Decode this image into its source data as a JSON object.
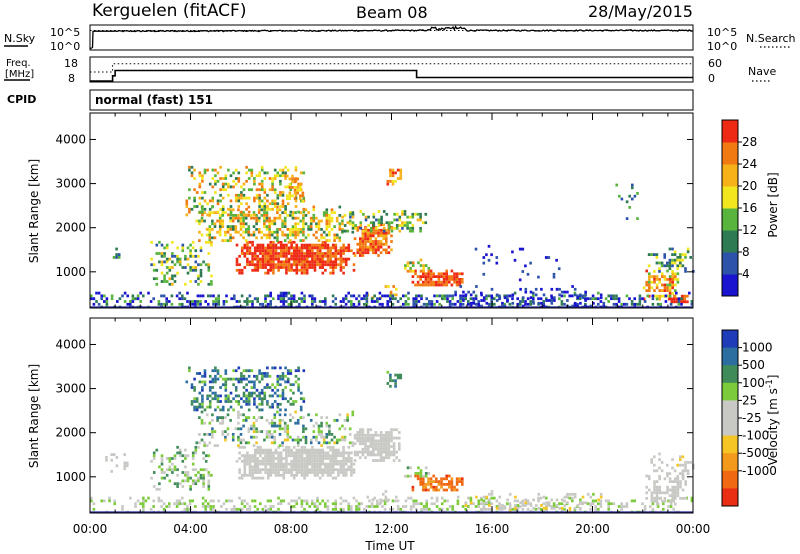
{
  "header": {
    "station": "Kerguelen (fitACF)",
    "beam": "Beam 08",
    "date": "28/May/2015"
  },
  "nsky_panel": {
    "left_label": "N.Sky",
    "right_label": "N.Search",
    "left_ticks": [
      "10^5",
      "10^0"
    ],
    "right_ticks": [
      "10^5",
      "10^0"
    ]
  },
  "freq_panel": {
    "left_label_line1": "Freq.",
    "left_label_line2": "[MHz]",
    "right_label": "Nave",
    "left_ticks": [
      "18",
      "8"
    ],
    "right_ticks": [
      "60",
      "0"
    ]
  },
  "cpid": {
    "label": "CPID",
    "mode_text": "normal (fast) 151"
  },
  "colors": {
    "power_scale": [
      "#1a14d0",
      "#2c53a8",
      "#2e7a52",
      "#58b43c",
      "#f2e61e",
      "#f7b21a",
      "#f27a12",
      "#ee2a14"
    ],
    "velocity_scale": [
      "#1f3cb8",
      "#2d6ea0",
      "#3f8c5a",
      "#7ccb3a",
      "#c8c8c4",
      "#c8c8c4",
      "#f5c525",
      "#f39a1c",
      "#f06812",
      "#ea2e14"
    ]
  },
  "chart_data": [
    {
      "type": "line",
      "panel": "noise",
      "series": [
        {
          "name": "N.Sky",
          "style": "solid",
          "x": [
            0,
            0.1,
            0.12,
            13,
            14.5,
            15,
            24
          ],
          "y": [
            0.05,
            0.1,
            0.75,
            0.78,
            0.82,
            0.78,
            0.78
          ]
        },
        {
          "name": "N.Search",
          "style": "dotted",
          "x": [
            0,
            24
          ],
          "y": [
            0.78,
            0.78
          ]
        }
      ]
    },
    {
      "type": "line",
      "panel": "frequency",
      "freq_ylim": [
        8,
        18
      ],
      "nave_ylim": [
        0,
        60
      ],
      "series": [
        {
          "name": "Freq.",
          "style": "solid",
          "x": [
            0,
            0.9,
            0.9,
            1.0,
            1.0,
            13,
            13,
            24
          ],
          "y": [
            8.4,
            8.4,
            10.5,
            10.5,
            12.6,
            12.6,
            9.8,
            9.8
          ]
        },
        {
          "name": "Nave",
          "style": "dotted",
          "x": [
            0,
            0.9,
            0.9,
            24
          ],
          "y": [
            24,
            24,
            44,
            44
          ]
        }
      ]
    },
    {
      "type": "heatmap",
      "panel": "power",
      "xlabel": "Time UT",
      "ylabel": "Slant Range [km]",
      "xlim": [
        0,
        24
      ],
      "ylim": [
        180,
        4600
      ],
      "xticks": [
        "00:00",
        "04:00",
        "08:00",
        "12:00",
        "16:00",
        "20:00",
        "00:00"
      ],
      "yticks": [
        1000,
        2000,
        3000,
        4000
      ],
      "colorbar": {
        "label": "Power [dB]",
        "ticks": [
          4,
          8,
          12,
          16,
          20,
          24,
          28
        ],
        "range": [
          0,
          32
        ]
      },
      "regions": [
        {
          "t0": 5.8,
          "t1": 10.5,
          "r0": 1000,
          "r1": 1700,
          "v": 29,
          "spread": 3,
          "density": 0.9
        },
        {
          "t0": 10.5,
          "t1": 12.0,
          "r0": 1400,
          "r1": 2100,
          "v": 27,
          "spread": 4,
          "density": 0.85
        },
        {
          "t0": 12.8,
          "t1": 14.8,
          "r0": 680,
          "r1": 1050,
          "v": 28,
          "spread": 4,
          "density": 0.85
        },
        {
          "t0": 4.2,
          "t1": 10.5,
          "r0": 1700,
          "r1": 2500,
          "v": 18,
          "spread": 9,
          "density": 0.55
        },
        {
          "t0": 3.8,
          "t1": 8.5,
          "r0": 2300,
          "r1": 3400,
          "v": 18,
          "spread": 9,
          "density": 0.35
        },
        {
          "t0": 7.8,
          "t1": 8.5,
          "r0": 2600,
          "r1": 3200,
          "v": 22,
          "spread": 6,
          "density": 0.5
        },
        {
          "t0": 11.8,
          "t1": 12.4,
          "r0": 3000,
          "r1": 3400,
          "v": 24,
          "spread": 5,
          "density": 0.5
        },
        {
          "t0": 2.4,
          "t1": 4.8,
          "r0": 700,
          "r1": 1700,
          "v": 14,
          "spread": 8,
          "density": 0.4
        },
        {
          "t0": 0.8,
          "t1": 1.2,
          "r0": 1250,
          "r1": 1550,
          "v": 12,
          "spread": 6,
          "density": 0.5
        },
        {
          "t0": 10.0,
          "t1": 13.5,
          "r0": 1900,
          "r1": 2400,
          "v": 14,
          "spread": 8,
          "density": 0.45
        },
        {
          "t0": 12.5,
          "t1": 13.5,
          "r0": 1000,
          "r1": 1300,
          "v": 18,
          "spread": 8,
          "density": 0.5
        },
        {
          "t0": 11.0,
          "t1": 12.2,
          "r0": 400,
          "r1": 700,
          "v": 22,
          "spread": 6,
          "density": 0.3
        },
        {
          "t0": 22.0,
          "t1": 23.4,
          "r0": 400,
          "r1": 1050,
          "v": 22,
          "spread": 8,
          "density": 0.6
        },
        {
          "t0": 23.0,
          "t1": 23.8,
          "r0": 330,
          "r1": 480,
          "v": 30,
          "spread": 3,
          "density": 0.8
        },
        {
          "t0": 22.2,
          "t1": 24.0,
          "r0": 1000,
          "r1": 1550,
          "v": 12,
          "spread": 8,
          "density": 0.45
        },
        {
          "t0": 20.6,
          "t1": 21.8,
          "r0": 2200,
          "r1": 3000,
          "v": 10,
          "spread": 6,
          "density": 0.12
        },
        {
          "t0": 0.0,
          "t1": 24.0,
          "r0": 200,
          "r1": 550,
          "v": 6,
          "spread": 9,
          "density": 0.45
        },
        {
          "t0": 14.5,
          "t1": 20.5,
          "r0": 200,
          "r1": 700,
          "v": 4,
          "spread": 3,
          "density": 0.25
        },
        {
          "t0": 15.0,
          "t1": 19.0,
          "r0": 800,
          "r1": 1800,
          "v": 3,
          "spread": 3,
          "density": 0.03
        }
      ]
    },
    {
      "type": "heatmap",
      "panel": "velocity",
      "xlabel": "Time UT",
      "ylabel": "Slant Range [km]",
      "xlim": [
        0,
        24
      ],
      "ylim": [
        180,
        4600
      ],
      "xticks": [
        "00:00",
        "04:00",
        "08:00",
        "12:00",
        "16:00",
        "20:00",
        "00:00"
      ],
      "yticks": [
        1000,
        2000,
        3000,
        4000
      ],
      "colorbar": {
        "label": "Velocity [m s^-1]",
        "ticks": [
          1000,
          500,
          100,
          25,
          -25,
          -100,
          -500,
          -1000
        ]
      },
      "regions": [
        {
          "t0": 5.8,
          "t1": 10.5,
          "r0": 1000,
          "r1": 1700,
          "v": 0.2,
          "spread": 0.6,
          "density": 0.9
        },
        {
          "t0": 10.5,
          "t1": 12.3,
          "r0": 1400,
          "r1": 2100,
          "v": 0.2,
          "spread": 0.6,
          "density": 0.85
        },
        {
          "t0": 12.8,
          "t1": 14.8,
          "r0": 680,
          "r1": 1050,
          "v": 3.3,
          "spread": 0.8,
          "density": 0.8
        },
        {
          "t0": 3.8,
          "t1": 8.5,
          "r0": 2500,
          "r1": 3500,
          "v": -3.0,
          "spread": 1.5,
          "density": 0.45
        },
        {
          "t0": 11.8,
          "t1": 12.4,
          "r0": 3000,
          "r1": 3400,
          "v": -2.6,
          "spread": 0.8,
          "density": 0.5
        },
        {
          "t0": 4.2,
          "t1": 10.5,
          "r0": 1700,
          "r1": 2500,
          "v": -1.2,
          "spread": 2.5,
          "density": 0.35
        },
        {
          "t0": 2.4,
          "t1": 4.8,
          "r0": 700,
          "r1": 1700,
          "v": -1.5,
          "spread": 1.2,
          "density": 0.35
        },
        {
          "t0": 0.0,
          "t1": 24.0,
          "r0": 200,
          "r1": 550,
          "v": -0.8,
          "spread": 1.0,
          "density": 0.4
        },
        {
          "t0": 22.0,
          "t1": 23.8,
          "r0": 400,
          "r1": 1050,
          "v": 0.1,
          "spread": 0.8,
          "density": 0.5
        },
        {
          "t0": 22.2,
          "t1": 24.0,
          "r0": 1000,
          "r1": 1550,
          "v": 0.2,
          "spread": 1.0,
          "density": 0.35
        },
        {
          "t0": 12.5,
          "t1": 13.5,
          "r0": 1000,
          "r1": 1300,
          "v": -1.4,
          "spread": 0.8,
          "density": 0.45
        },
        {
          "t0": 11.0,
          "t1": 12.2,
          "r0": 400,
          "r1": 700,
          "v": 0.3,
          "spread": 0.8,
          "density": 0.3
        },
        {
          "t0": 14.5,
          "t1": 20.5,
          "r0": 200,
          "r1": 700,
          "v": 0.2,
          "spread": 1.5,
          "density": 0.22
        },
        {
          "t0": 0.5,
          "t1": 1.5,
          "r0": 1100,
          "r1": 1600,
          "v": 0.2,
          "spread": 0.4,
          "density": 0.2
        }
      ]
    }
  ]
}
